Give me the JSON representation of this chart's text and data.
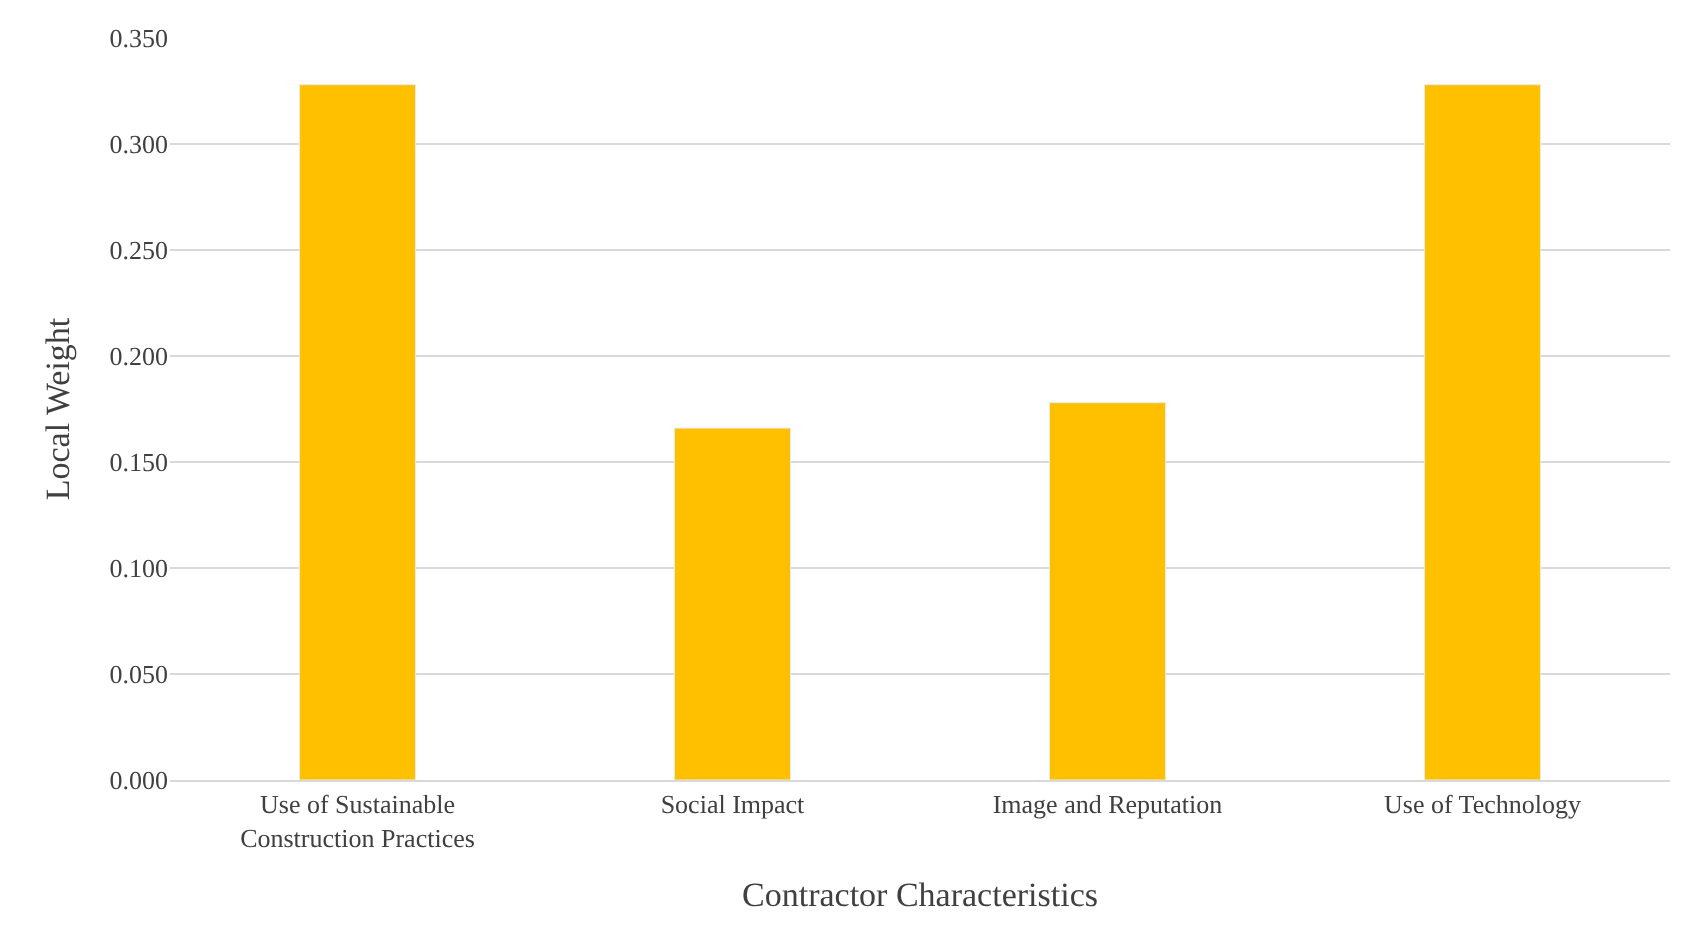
{
  "chart_data": {
    "type": "bar",
    "xlabel": "Contractor Characteristics",
    "ylabel": "Local Weight",
    "categories": [
      "Use of Sustainable Construction Practices",
      "Social Impact",
      "Image and Reputation",
      "Use of Technology"
    ],
    "values": [
      0.328,
      0.166,
      0.178,
      0.328
    ],
    "color": "#ffc000",
    "ylim": [
      0,
      0.35
    ],
    "yticks": [
      {
        "value": 0,
        "label": "0.000"
      },
      {
        "value": 0.05,
        "label": "0.050"
      },
      {
        "value": 0.1,
        "label": "0.100"
      },
      {
        "value": 0.15,
        "label": "0.150"
      },
      {
        "value": 0.2,
        "label": "0.200"
      },
      {
        "value": 0.25,
        "label": "0.250"
      },
      {
        "value": 0.3,
        "label": "0.300"
      },
      {
        "value": 0.35,
        "label": "0.350"
      }
    ],
    "grid": "y"
  }
}
